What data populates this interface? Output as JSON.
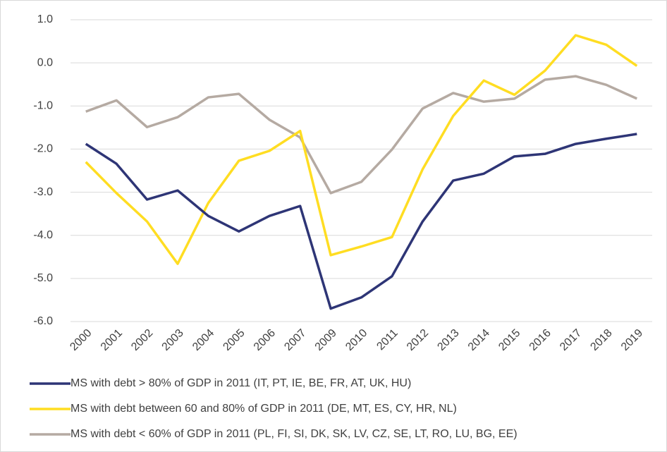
{
  "chart_data": {
    "type": "line",
    "categories": [
      "2000",
      "2001",
      "2002",
      "2003",
      "2004",
      "2005",
      "2006",
      "2007",
      "2009",
      "2010",
      "2011",
      "2012",
      "2013",
      "2014",
      "2015",
      "2016",
      "2017",
      "2018",
      "2019"
    ],
    "series": [
      {
        "name": "MS with debt > 80% of GDP in 2011 (IT, PT, IE, BE, FR, AT, UK, HU)",
        "color": "#2e3576",
        "values": [
          -1.88,
          -2.34,
          -3.17,
          -2.96,
          -3.55,
          -3.91,
          -3.55,
          -3.32,
          -5.7,
          -5.44,
          -4.95,
          -3.68,
          -2.73,
          -2.57,
          -2.17,
          -2.11,
          -1.88,
          -1.76,
          -1.65
        ]
      },
      {
        "name": "MS with debt between 60 and 80% of GDP in 2011 (DE, MT, ES, CY, HR, NL)",
        "color": "#ffdd22",
        "values": [
          -2.3,
          -3.02,
          -3.68,
          -4.66,
          -3.25,
          -2.27,
          -2.04,
          -1.58,
          -4.46,
          -4.26,
          -4.04,
          -2.47,
          -1.23,
          -0.41,
          -0.74,
          -0.18,
          0.64,
          0.42,
          -0.07
        ]
      },
      {
        "name": "MS with debt < 60% of GDP in 2011 (PL, FI, SI, DK, SK, LV, CZ, SE, LT, RO, LU, BG, EE)",
        "color": "#b5aaa2",
        "values": [
          -1.13,
          -0.87,
          -1.49,
          -1.26,
          -0.8,
          -0.72,
          -1.32,
          -1.73,
          -3.02,
          -2.76,
          -2.01,
          -1.06,
          -0.7,
          -0.9,
          -0.83,
          -0.39,
          -0.31,
          -0.51,
          -0.83
        ]
      }
    ],
    "ylim": [
      -6,
      1
    ],
    "yticks": [
      {
        "value": -6,
        "label": "-6.0"
      },
      {
        "value": -5,
        "label": "-5.0"
      },
      {
        "value": -4,
        "label": "-4.0"
      },
      {
        "value": -3,
        "label": "-3.0"
      },
      {
        "value": -2,
        "label": "-2.0"
      },
      {
        "value": -1,
        "label": "-1.0"
      },
      {
        "value": 0,
        "label": "0.0"
      },
      {
        "value": 1,
        "label": "1.0"
      }
    ],
    "grid": true
  }
}
